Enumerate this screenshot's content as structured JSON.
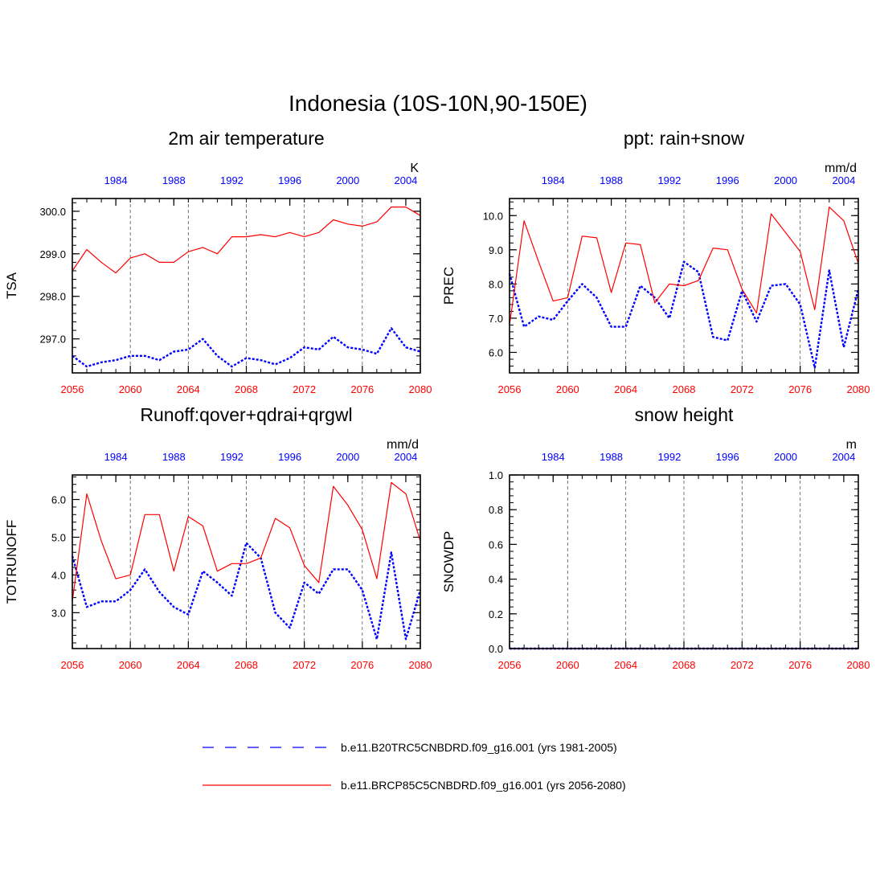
{
  "title": "Indonesia (10S-10N,90-150E)",
  "colors": {
    "hist": "#0000ff",
    "fut": "#ff0000",
    "axis": "#000000",
    "grid": "#555555"
  },
  "x_axis": {
    "future_ticks": [
      "2056",
      "2060",
      "2064",
      "2068",
      "2072",
      "2076",
      "2080"
    ],
    "future_range": [
      2056,
      2080
    ],
    "hist_ticks": [
      "1984",
      "1988",
      "1992",
      "1996",
      "2000",
      "2004"
    ],
    "hist_offset": 75
  },
  "chart_data": [
    {
      "type": "line",
      "title": "2m air temperature",
      "ylabel": "TSA",
      "units": "K",
      "ylim": [
        296.2,
        300.3
      ],
      "yticks": [
        "297.0",
        "298.0",
        "299.0",
        "300.0"
      ],
      "x_future": [
        2056,
        2057,
        2058,
        2059,
        2060,
        2061,
        2062,
        2063,
        2064,
        2065,
        2066,
        2067,
        2068,
        2069,
        2070,
        2071,
        2072,
        2073,
        2074,
        2075,
        2076,
        2077,
        2078,
        2079,
        2080
      ],
      "series": [
        {
          "name": "b.e11.B20TRC5CNBDRD.f09_g16.001 (yrs 1981-2005)",
          "style": "hist",
          "values": [
            296.6,
            296.35,
            296.45,
            296.5,
            296.6,
            296.6,
            296.5,
            296.7,
            296.75,
            297.0,
            296.6,
            296.35,
            296.55,
            296.5,
            296.4,
            296.55,
            296.8,
            296.75,
            297.05,
            296.8,
            296.75,
            296.65,
            297.25,
            296.8,
            296.7
          ]
        },
        {
          "name": "b.e11.BRCP85C5CNBDRD.f09_g16.001 (yrs 2056-2080)",
          "style": "fut",
          "values": [
            298.6,
            299.1,
            298.8,
            298.55,
            298.9,
            299.0,
            298.8,
            298.8,
            299.05,
            299.15,
            299.0,
            299.4,
            299.4,
            299.45,
            299.4,
            299.5,
            299.4,
            299.5,
            299.8,
            299.7,
            299.65,
            299.75,
            300.1,
            300.1,
            299.9
          ]
        }
      ]
    },
    {
      "type": "line",
      "title": "ppt: rain+snow",
      "ylabel": "PREC",
      "units": "mm/d",
      "ylim": [
        5.4,
        10.5
      ],
      "yticks": [
        "6.0",
        "7.0",
        "8.0",
        "9.0",
        "10.0"
      ],
      "x_future": [
        2056,
        2057,
        2058,
        2059,
        2060,
        2061,
        2062,
        2063,
        2064,
        2065,
        2066,
        2067,
        2068,
        2069,
        2070,
        2071,
        2072,
        2073,
        2074,
        2075,
        2076,
        2077,
        2078,
        2079,
        2080
      ],
      "series": [
        {
          "name": "b.e11.B20TRC5CNBDRD.f09_g16.001 (yrs 1981-2005)",
          "style": "hist",
          "values": [
            8.3,
            6.75,
            7.05,
            6.95,
            7.5,
            8.0,
            7.6,
            6.75,
            6.75,
            7.95,
            7.6,
            7.0,
            8.65,
            8.35,
            6.45,
            6.35,
            7.8,
            6.9,
            7.95,
            8.0,
            7.4,
            5.55,
            8.4,
            6.15,
            7.85
          ]
        },
        {
          "name": "b.e11.BRCP85C5CNBDRD.f09_g16.001 (yrs 2056-2080)",
          "style": "fut",
          "values": [
            6.8,
            9.85,
            8.65,
            7.5,
            7.6,
            9.4,
            9.35,
            7.75,
            9.2,
            9.15,
            7.45,
            8.0,
            7.95,
            8.1,
            9.05,
            9.0,
            7.85,
            7.15,
            10.05,
            9.5,
            8.95,
            7.25,
            10.25,
            9.85,
            8.6
          ]
        }
      ]
    },
    {
      "type": "line",
      "title": "Runoff:qover+qdrai+qrgwl",
      "ylabel": "TOTRUNOFF",
      "units": "mm/d",
      "ylim": [
        2.05,
        6.65
      ],
      "yticks": [
        "3.0",
        "4.0",
        "5.0",
        "6.0"
      ],
      "x_future": [
        2056,
        2057,
        2058,
        2059,
        2060,
        2061,
        2062,
        2063,
        2064,
        2065,
        2066,
        2067,
        2068,
        2069,
        2070,
        2071,
        2072,
        2073,
        2074,
        2075,
        2076,
        2077,
        2078,
        2079,
        2080
      ],
      "series": [
        {
          "name": "b.e11.B20TRC5CNBDRD.f09_g16.001 (yrs 1981-2005)",
          "style": "hist",
          "values": [
            4.5,
            3.15,
            3.3,
            3.3,
            3.6,
            4.15,
            3.55,
            3.15,
            2.95,
            4.1,
            3.8,
            3.45,
            4.85,
            4.45,
            3.0,
            2.6,
            3.8,
            3.5,
            4.15,
            4.15,
            3.6,
            2.3,
            4.6,
            2.3,
            3.6
          ]
        },
        {
          "name": "b.e11.BRCP85C5CNBDRD.f09_g16.001 (yrs 2056-2080)",
          "style": "fut",
          "values": [
            3.3,
            6.15,
            4.9,
            3.9,
            4.0,
            5.6,
            5.6,
            4.1,
            5.55,
            5.3,
            4.1,
            4.3,
            4.3,
            4.45,
            5.5,
            5.25,
            4.25,
            3.8,
            6.35,
            5.85,
            5.2,
            3.9,
            6.45,
            6.15,
            4.9
          ]
        }
      ]
    },
    {
      "type": "line",
      "title": "snow height",
      "ylabel": "SNOWDP",
      "units": "m",
      "ylim": [
        0.0,
        1.0
      ],
      "yticks": [
        "0.0",
        "0.2",
        "0.4",
        "0.6",
        "0.8",
        "1.0"
      ],
      "x_future": [
        2056,
        2057,
        2058,
        2059,
        2060,
        2061,
        2062,
        2063,
        2064,
        2065,
        2066,
        2067,
        2068,
        2069,
        2070,
        2071,
        2072,
        2073,
        2074,
        2075,
        2076,
        2077,
        2078,
        2079,
        2080
      ],
      "series": [
        {
          "name": "b.e11.B20TRC5CNBDRD.f09_g16.001 (yrs 1981-2005)",
          "style": "hist",
          "values": [
            0,
            0,
            0,
            0,
            0,
            0,
            0,
            0,
            0,
            0,
            0,
            0,
            0,
            0,
            0,
            0,
            0,
            0,
            0,
            0,
            0,
            0,
            0,
            0,
            0
          ]
        },
        {
          "name": "b.e11.BRCP85C5CNBDRD.f09_g16.001 (yrs 2056-2080)",
          "style": "fut",
          "values": [
            0,
            0,
            0,
            0,
            0,
            0,
            0,
            0,
            0,
            0,
            0,
            0,
            0,
            0,
            0,
            0,
            0,
            0,
            0,
            0,
            0,
            0,
            0,
            0,
            0
          ]
        }
      ]
    }
  ],
  "legend": [
    {
      "label": "b.e11.B20TRC5CNBDRD.f09_g16.001 (yrs 1981-2005)",
      "style": "hist"
    },
    {
      "label": "b.e11.BRCP85C5CNBDRD.f09_g16.001 (yrs 2056-2080)",
      "style": "fut"
    }
  ]
}
